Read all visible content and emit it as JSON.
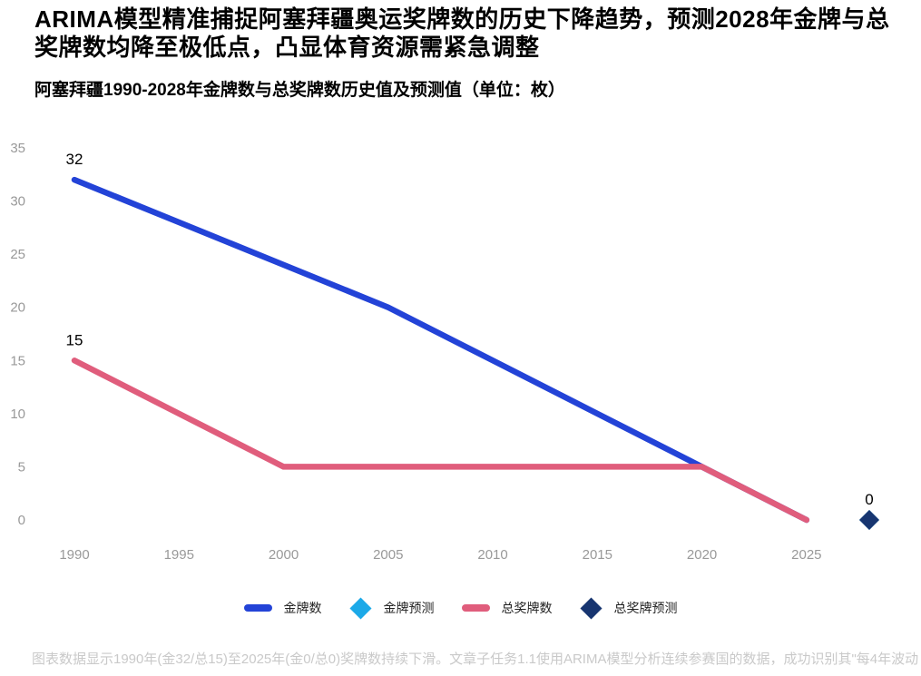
{
  "header": {
    "title": "ARIMA模型精准捕捉阿塞拜疆奥运奖牌数的历史下降趋势，预测2028年金牌与总奖牌数均降至极低点，凸显体育资源需紧急调整",
    "subtitle": "阿塞拜疆1990-2028年金牌数与总奖牌数历史值及预测值（单位：枚）"
  },
  "colors": {
    "gold_line": "#2343d7",
    "gold_forecast": "#1ca9e8",
    "total_line": "#e05d7c",
    "total_forecast": "#173570",
    "axis_text": "#999999",
    "data_label": "#000000",
    "caption_text": "#c9c9c9"
  },
  "chart_data": {
    "type": "line",
    "title": "阿塞拜疆1990-2028年金牌数与总奖牌数历史值及预测值（单位：枚）",
    "x": [
      1990,
      1995,
      2000,
      2005,
      2010,
      2015,
      2020,
      2025
    ],
    "series": [
      {
        "name": "金牌数",
        "kind": "line",
        "color_key": "gold_line",
        "values": [
          32,
          28,
          24,
          20,
          15,
          10,
          5,
          0
        ]
      },
      {
        "name": "总奖牌数",
        "kind": "line",
        "color_key": "total_line",
        "values": [
          15,
          10,
          5,
          5,
          5,
          5,
          5,
          0
        ]
      },
      {
        "name": "金牌预测",
        "kind": "diamond",
        "color_key": "gold_forecast",
        "points": [
          {
            "x": 2028,
            "y": 0
          }
        ]
      },
      {
        "name": "总奖牌预测",
        "kind": "diamond",
        "color_key": "total_forecast",
        "points": [
          {
            "x": 2028,
            "y": 0
          }
        ]
      }
    ],
    "data_labels": [
      {
        "text": "32",
        "x": 1990,
        "y": 32
      },
      {
        "text": "15",
        "x": 1990,
        "y": 15
      },
      {
        "text": "0",
        "x": 2028,
        "y": 0
      }
    ],
    "x_axis": {
      "min": 1990,
      "max": 2028,
      "ticks": [
        1990,
        1995,
        2000,
        2005,
        2010,
        2015,
        2020,
        2025
      ]
    },
    "y_axis": {
      "min": 0,
      "max": 35,
      "ticks": [
        0,
        5,
        10,
        15,
        20,
        25,
        30,
        35
      ]
    },
    "grid": false,
    "legend_position": "bottom"
  },
  "legend": {
    "items": [
      {
        "label": "金牌数",
        "swatch": "line",
        "color_key": "gold_line"
      },
      {
        "label": "金牌预测",
        "swatch": "diamond",
        "color_key": "gold_forecast"
      },
      {
        "label": "总奖牌数",
        "swatch": "line",
        "color_key": "total_line"
      },
      {
        "label": "总奖牌预测",
        "swatch": "diamond",
        "color_key": "total_forecast"
      }
    ]
  },
  "caption": {
    "text": "图表数据显示1990年(金32/总15)至2025年(金0/总0)奖牌数持续下滑。文章子任务1.1使用ARIMA模型分析连续参赛国的数据，成功识别其\"每4年波动"
  }
}
